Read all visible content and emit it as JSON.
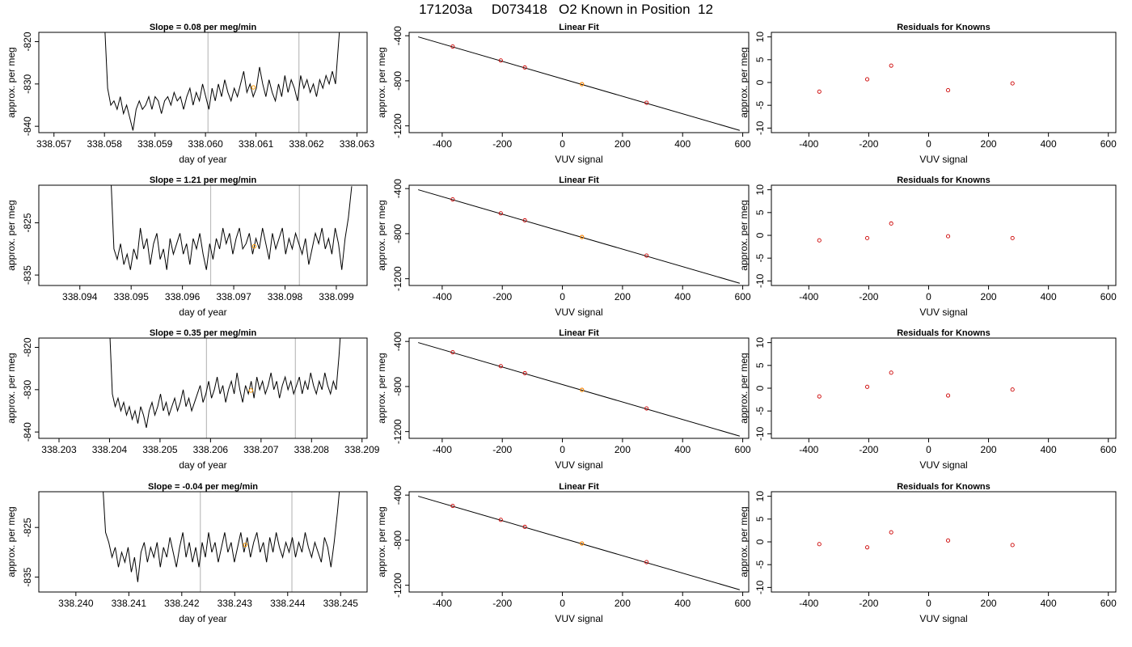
{
  "title": "171203a     D073418   O2 Known in Position  12",
  "chart_data": [
    {
      "row": 1,
      "type": "line",
      "title": "Slope =  0.08  per meg/min",
      "xlabel": "day of year",
      "ylabel": "approx. per meg",
      "xlim": [
        338.0567,
        338.0632
      ],
      "ylim": [
        -841.5,
        -817.8
      ],
      "xticks": [
        "338.057",
        "338.058",
        "338.059",
        "338.060",
        "338.061",
        "338.062",
        "338.063"
      ],
      "yticks": [
        "-820",
        "-830",
        "-840"
      ],
      "yticks_at": [
        -820,
        -830,
        -840
      ],
      "vlines": [
        338.06005,
        338.06185
      ],
      "marker": {
        "x": 338.06095,
        "y": -830.8
      },
      "series": [
        {
          "x_start": 338.058,
          "x_end": 338.0627,
          "values": [
            -815,
            -831,
            -835,
            -834,
            -836,
            -833,
            -837,
            -835,
            -838,
            -841,
            -836,
            -834,
            -836,
            -835,
            -833,
            -836,
            -833,
            -834,
            -837,
            -834,
            -833,
            -835,
            -832,
            -834,
            -833,
            -836,
            -833,
            -831,
            -835,
            -832,
            -834,
            -830,
            -833,
            -836,
            -831,
            -834,
            -830,
            -833,
            -829,
            -832,
            -834,
            -831,
            -833,
            -830,
            -827,
            -832,
            -830,
            -833,
            -831,
            -826,
            -830,
            -833,
            -829,
            -832,
            -834,
            -830,
            -833,
            -828,
            -832,
            -829,
            -831,
            -834,
            -828,
            -831,
            -829,
            -832,
            -830,
            -833,
            -829,
            -831,
            -828,
            -830,
            -827,
            -830,
            -820,
            -810
          ]
        }
      ]
    },
    {
      "row": 2,
      "type": "line",
      "title": "Slope =  1.21  per meg/min",
      "xlabel": "day of year",
      "ylabel": "approx. per meg",
      "xlim": [
        338.0932,
        338.0996
      ],
      "ylim": [
        -837,
        -817.8
      ],
      "xticks": [
        "338.094",
        "338.095",
        "338.096",
        "338.097",
        "338.098",
        "338.099"
      ],
      "yticks": [
        "-825",
        "-835"
      ],
      "yticks_at": [
        -825,
        -835
      ],
      "vlines": [
        338.09655,
        338.09828
      ],
      "marker": {
        "x": 338.0974,
        "y": -829.5
      },
      "series": [
        {
          "x_start": 338.0946,
          "x_end": 338.0993,
          "values": [
            -815,
            -830,
            -832,
            -829,
            -833,
            -831,
            -834,
            -830,
            -832,
            -826,
            -830,
            -828,
            -833,
            -829,
            -827,
            -832,
            -830,
            -834,
            -828,
            -831,
            -829,
            -827,
            -831,
            -829,
            -833,
            -828,
            -830,
            -827,
            -831,
            -834,
            -829,
            -832,
            -828,
            -830,
            -826,
            -829,
            -827,
            -831,
            -828,
            -826,
            -830,
            -829,
            -827,
            -831,
            -828,
            -830,
            -826,
            -829,
            -832,
            -827,
            -830,
            -828,
            -826,
            -831,
            -828,
            -830,
            -827,
            -829,
            -831,
            -828,
            -833,
            -830,
            -827,
            -829,
            -826,
            -830,
            -828,
            -831,
            -826,
            -829,
            -834,
            -828,
            -824,
            -818
          ]
        }
      ]
    },
    {
      "row": 3,
      "type": "line",
      "title": "Slope =  0.35  per meg/min",
      "xlabel": "day of year",
      "ylabel": "approx. per meg",
      "xlim": [
        338.2026,
        338.2091
      ],
      "ylim": [
        -841.5,
        -817.8
      ],
      "xticks": [
        "338.203",
        "338.204",
        "338.205",
        "338.206",
        "338.207",
        "338.208",
        "338.209"
      ],
      "yticks": [
        "-820",
        "-830",
        "-840"
      ],
      "yticks_at": [
        -820,
        -830,
        -840
      ],
      "vlines": [
        338.20592,
        338.20768
      ],
      "marker": {
        "x": 338.2068,
        "y": -830.2
      },
      "series": [
        {
          "x_start": 338.204,
          "x_end": 338.2086,
          "values": [
            -815,
            -831,
            -834,
            -832,
            -835,
            -833,
            -836,
            -834,
            -837,
            -835,
            -838,
            -834,
            -836,
            -839,
            -835,
            -833,
            -836,
            -834,
            -831,
            -835,
            -833,
            -836,
            -834,
            -832,
            -835,
            -833,
            -830,
            -834,
            -832,
            -835,
            -833,
            -831,
            -829,
            -833,
            -831,
            -828,
            -832,
            -830,
            -827,
            -831,
            -829,
            -833,
            -830,
            -828,
            -831,
            -826,
            -830,
            -833,
            -829,
            -831,
            -828,
            -832,
            -827,
            -830,
            -828,
            -831,
            -829,
            -826,
            -830,
            -828,
            -832,
            -829,
            -827,
            -830,
            -828,
            -831,
            -829,
            -827,
            -831,
            -828,
            -830,
            -826,
            -829,
            -831,
            -828,
            -830,
            -826,
            -829,
            -831,
            -828,
            -830,
            -822,
            -812
          ]
        }
      ]
    },
    {
      "row": 4,
      "type": "line",
      "title": "Slope =  -0.04  per meg/min",
      "xlabel": "day of year",
      "ylabel": "approx. per meg",
      "xlim": [
        338.2393,
        338.2455
      ],
      "ylim": [
        -838,
        -817.8
      ],
      "xticks": [
        "338.240",
        "338.241",
        "338.242",
        "338.243",
        "338.244",
        "338.245"
      ],
      "yticks": [
        "-825",
        "-835"
      ],
      "yticks_at": [
        -825,
        -835
      ],
      "vlines": [
        338.24235,
        338.24408
      ],
      "marker": {
        "x": 338.2432,
        "y": -828.5
      },
      "series": [
        {
          "x_start": 338.2405,
          "x_end": 338.245,
          "values": [
            -815,
            -826,
            -828,
            -831,
            -829,
            -833,
            -830,
            -832,
            -829,
            -834,
            -831,
            -836,
            -830,
            -828,
            -832,
            -829,
            -831,
            -828,
            -833,
            -829,
            -831,
            -827,
            -830,
            -833,
            -829,
            -826,
            -831,
            -828,
            -832,
            -829,
            -833,
            -828,
            -831,
            -826,
            -830,
            -828,
            -832,
            -829,
            -826,
            -830,
            -828,
            -832,
            -829,
            -826,
            -830,
            -827,
            -831,
            -828,
            -826,
            -830,
            -828,
            -832,
            -827,
            -830,
            -826,
            -829,
            -831,
            -828,
            -830,
            -827,
            -831,
            -828,
            -830,
            -826,
            -829,
            -831,
            -828,
            -830,
            -832,
            -827,
            -829,
            -833,
            -828,
            -822,
            -815
          ]
        }
      ]
    },
    {
      "row": 1,
      "type": "scatter",
      "title": "Linear Fit",
      "xlabel": "VUV signal",
      "ylabel": "approx. per meg",
      "xlim": [
        -510,
        620
      ],
      "ylim": [
        -1260,
        -370
      ],
      "xticks": [
        "-400",
        "-200",
        "0",
        "200",
        "400",
        "600"
      ],
      "yticks": [
        "-400",
        "-800",
        "-1200"
      ],
      "yticks_at": [
        -400,
        -800,
        -1200
      ],
      "line": {
        "x": [
          -480,
          590
        ],
        "y": [
          -410,
          -1240
        ]
      },
      "points": {
        "x": [
          -365,
          -205,
          -125,
          65,
          280
        ],
        "y": [
          -496,
          -620,
          -682,
          -830,
          -995
        ]
      },
      "highlight": {
        "x": 65,
        "y": -830
      }
    },
    {
      "row": 2,
      "type": "scatter",
      "title": "Linear Fit",
      "xlabel": "VUV signal",
      "ylabel": "approx. per meg",
      "xlim": [
        -510,
        620
      ],
      "ylim": [
        -1260,
        -370
      ],
      "xticks": [
        "-400",
        "-200",
        "0",
        "200",
        "400",
        "600"
      ],
      "yticks": [
        "-400",
        "-800",
        "-1200"
      ],
      "yticks_at": [
        -400,
        -800,
        -1200
      ],
      "line": {
        "x": [
          -480,
          590
        ],
        "y": [
          -410,
          -1240
        ]
      },
      "points": {
        "x": [
          -365,
          -205,
          -125,
          65,
          280
        ],
        "y": [
          -496,
          -620,
          -682,
          -830,
          -995
        ]
      },
      "highlight": {
        "x": 65,
        "y": -830
      }
    },
    {
      "row": 3,
      "type": "scatter",
      "title": "Linear Fit",
      "xlabel": "VUV signal",
      "ylabel": "approx. per meg",
      "xlim": [
        -510,
        620
      ],
      "ylim": [
        -1260,
        -370
      ],
      "xticks": [
        "-400",
        "-200",
        "0",
        "200",
        "400",
        "600"
      ],
      "yticks": [
        "-400",
        "-800",
        "-1200"
      ],
      "yticks_at": [
        -400,
        -800,
        -1200
      ],
      "line": {
        "x": [
          -480,
          590
        ],
        "y": [
          -410,
          -1240
        ]
      },
      "points": {
        "x": [
          -365,
          -205,
          -125,
          65,
          280
        ],
        "y": [
          -496,
          -620,
          -682,
          -830,
          -995
        ]
      },
      "highlight": {
        "x": 65,
        "y": -830
      }
    },
    {
      "row": 4,
      "type": "scatter",
      "title": "Linear Fit",
      "xlabel": "VUV signal",
      "ylabel": "approx. per meg",
      "xlim": [
        -510,
        620
      ],
      "ylim": [
        -1260,
        -370
      ],
      "xticks": [
        "-400",
        "-200",
        "0",
        "200",
        "400",
        "600"
      ],
      "yticks": [
        "-400",
        "-800",
        "-1200"
      ],
      "yticks_at": [
        -400,
        -800,
        -1200
      ],
      "line": {
        "x": [
          -480,
          590
        ],
        "y": [
          -410,
          -1240
        ]
      },
      "points": {
        "x": [
          -365,
          -205,
          -125,
          65,
          280
        ],
        "y": [
          -496,
          -620,
          -682,
          -830,
          -995
        ]
      },
      "highlight": {
        "x": 65,
        "y": -830
      }
    },
    {
      "row": 1,
      "type": "scatter",
      "title": "Residuals for Knowns",
      "xlabel": "VUV signal",
      "ylabel": "approx. per meg",
      "xlim": [
        -525,
        625
      ],
      "ylim": [
        -11,
        11
      ],
      "xticks": [
        "-400",
        "-200",
        "0",
        "200",
        "400",
        "600"
      ],
      "yticks": [
        "10",
        "5",
        "0",
        "-5",
        "-10"
      ],
      "yticks_at": [
        10,
        5,
        0,
        -5,
        -10
      ],
      "points": {
        "x": [
          -365,
          -205,
          -125,
          65,
          280
        ],
        "y": [
          -2.0,
          0.7,
          3.7,
          -1.7,
          -0.2
        ]
      }
    },
    {
      "row": 2,
      "type": "scatter",
      "title": "Residuals for Knowns",
      "xlabel": "VUV signal",
      "ylabel": "approx. per meg",
      "xlim": [
        -525,
        625
      ],
      "ylim": [
        -11,
        11
      ],
      "xticks": [
        "-400",
        "-200",
        "0",
        "200",
        "400",
        "600"
      ],
      "yticks": [
        "10",
        "5",
        "0",
        "-5",
        "-10"
      ],
      "yticks_at": [
        10,
        5,
        0,
        -5,
        -10
      ],
      "points": {
        "x": [
          -365,
          -205,
          -125,
          65,
          280
        ],
        "y": [
          -1.1,
          -0.6,
          2.6,
          -0.2,
          -0.6
        ]
      }
    },
    {
      "row": 3,
      "type": "scatter",
      "title": "Residuals for Knowns",
      "xlabel": "VUV signal",
      "ylabel": "approx. per meg",
      "xlim": [
        -525,
        625
      ],
      "ylim": [
        -11,
        11
      ],
      "xticks": [
        "-400",
        "-200",
        "0",
        "200",
        "400",
        "600"
      ],
      "yticks": [
        "10",
        "5",
        "0",
        "-5",
        "-10"
      ],
      "yticks_at": [
        10,
        5,
        0,
        -5,
        -10
      ],
      "points": {
        "x": [
          -365,
          -205,
          -125,
          65,
          280
        ],
        "y": [
          -1.8,
          0.3,
          3.4,
          -1.6,
          -0.3
        ]
      }
    },
    {
      "row": 4,
      "type": "scatter",
      "title": "Residuals for Knowns",
      "xlabel": "VUV signal",
      "ylabel": "approx. per meg",
      "xlim": [
        -525,
        625
      ],
      "ylim": [
        -11,
        11
      ],
      "xticks": [
        "-400",
        "-200",
        "0",
        "200",
        "400",
        "600"
      ],
      "yticks": [
        "10",
        "5",
        "0",
        "-5",
        "-10"
      ],
      "yticks_at": [
        10,
        5,
        0,
        -5,
        -10
      ],
      "points": {
        "x": [
          -365,
          -205,
          -125,
          65,
          280
        ],
        "y": [
          -0.5,
          -1.2,
          2.1,
          0.3,
          -0.7
        ]
      }
    }
  ],
  "colors": {
    "trace": "#000000",
    "vline": "#bdbdbd",
    "marker": "#ff9900",
    "point": "#cc0000",
    "fit_line": "#000000"
  }
}
